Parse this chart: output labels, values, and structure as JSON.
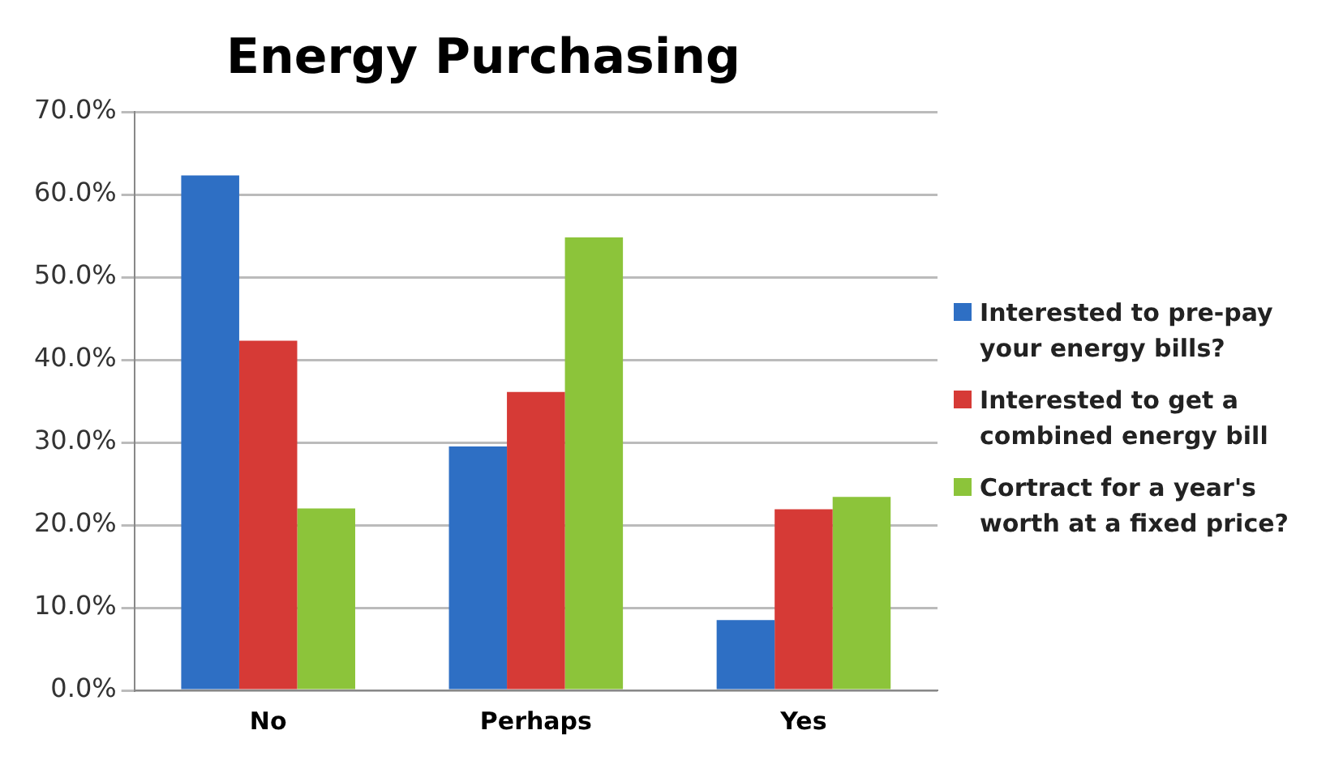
{
  "chart_data": {
    "type": "bar",
    "title": "Energy Purchasing",
    "categories": [
      "No",
      "Perhaps",
      "Yes"
    ],
    "series": [
      {
        "name": "Interested to pre-pay your energy bills?",
        "color": "#2e6fc4",
        "values": [
          62.3,
          29.5,
          8.5
        ]
      },
      {
        "name": "Interested to get a combined energy bill",
        "color": "#d63a36",
        "values": [
          42.3,
          36.1,
          21.9
        ]
      },
      {
        "name": "Cortract for a year's worth at a fixed price?",
        "color": "#8cc43a",
        "values": [
          22.0,
          54.8,
          23.4
        ]
      }
    ],
    "ylim": [
      0,
      70
    ],
    "yticks": [
      {
        "value": 0,
        "label": "0.0%"
      },
      {
        "value": 10,
        "label": "10.0%"
      },
      {
        "value": 20,
        "label": "20.0%"
      },
      {
        "value": 30,
        "label": "30.0%"
      },
      {
        "value": 40,
        "label": "40.0%"
      },
      {
        "value": 50,
        "label": "50.0%"
      },
      {
        "value": 60,
        "label": "60.0%"
      },
      {
        "value": 70,
        "label": "70.0%"
      }
    ],
    "grid": "y",
    "legend": "right"
  }
}
